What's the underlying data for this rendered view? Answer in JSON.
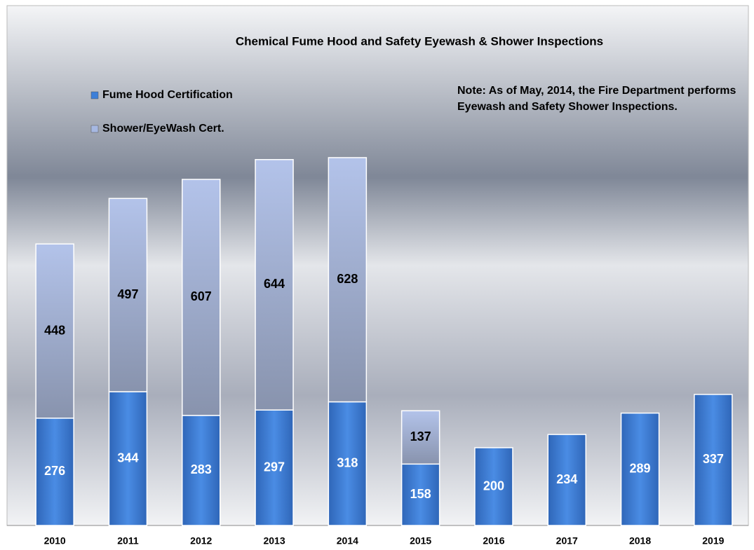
{
  "chart_data": {
    "type": "stacked_bar",
    "title": "Chemical Fume Hood and Safety Eyewash & Shower Inspections",
    "annotation": "Note: As of May, 2014, the Fire Department performs Eyewash and Safety Shower Inspections.",
    "categories": [
      "2010",
      "2011",
      "2012",
      "2013",
      "2014",
      "2015",
      "2016",
      "2017",
      "2018",
      "2019"
    ],
    "series": [
      {
        "name": "Fume Hood Certification",
        "color": "#3d7fd8",
        "values": [
          276,
          344,
          283,
          297,
          318,
          158,
          200,
          234,
          289,
          337
        ]
      },
      {
        "name": "Shower/EyeWash Cert.",
        "color": "#a6b8e2",
        "values": [
          448,
          497,
          607,
          644,
          628,
          137,
          null,
          null,
          null,
          null
        ]
      }
    ],
    "ylim": [
      0,
      1200
    ]
  }
}
